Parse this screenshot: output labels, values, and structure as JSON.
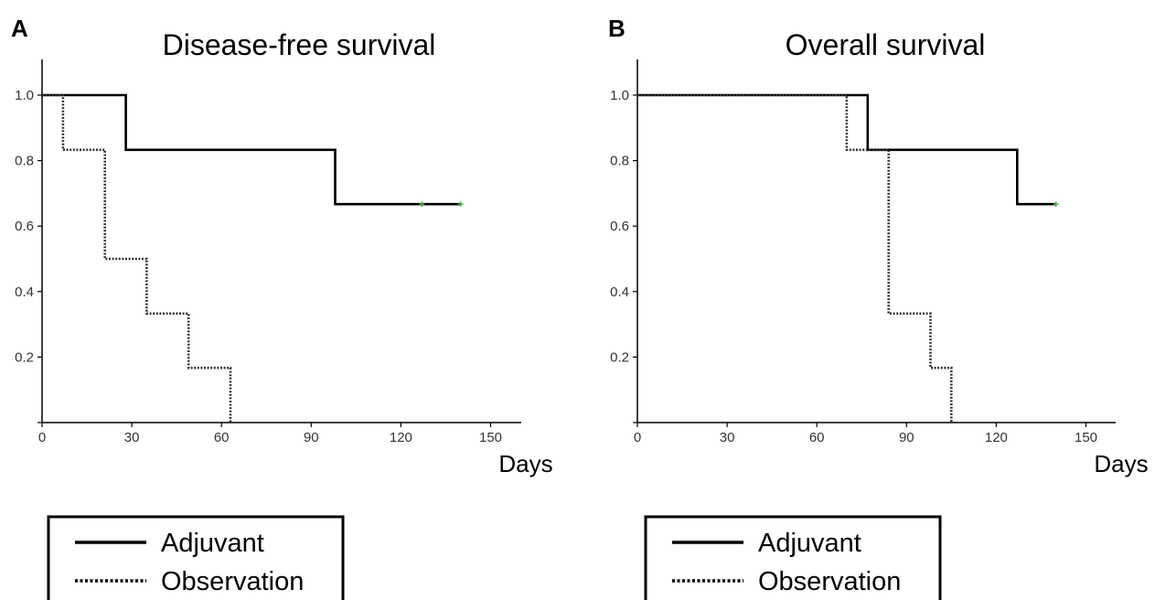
{
  "chart_data": [
    {
      "type": "line",
      "panel_label": "A",
      "title": "Disease-free survival",
      "xlabel": "Days",
      "ylabel": "",
      "xlim": [
        0,
        160
      ],
      "ylim": [
        0,
        1.1
      ],
      "x_ticks": [
        "0",
        "30",
        "60",
        "90",
        "120",
        "150"
      ],
      "y_ticks": [
        "0.2",
        "0.4",
        "0.6",
        "0.8",
        "1.0"
      ],
      "step": true,
      "series": [
        {
          "name": "Adjuvant",
          "style": "solid",
          "points": [
            [
              0,
              1.0
            ],
            [
              28,
              1.0
            ],
            [
              28,
              0.833
            ],
            [
              98,
              0.833
            ],
            [
              98,
              0.667
            ],
            [
              140,
              0.667
            ]
          ],
          "censored": [
            [
              127,
              0.667
            ],
            [
              140,
              0.667
            ]
          ]
        },
        {
          "name": "Observation",
          "style": "dotted",
          "points": [
            [
              0,
              1.0
            ],
            [
              7,
              1.0
            ],
            [
              7,
              0.833
            ],
            [
              21,
              0.833
            ],
            [
              21,
              0.5
            ],
            [
              35,
              0.5
            ],
            [
              35,
              0.333
            ],
            [
              49,
              0.333
            ],
            [
              49,
              0.167
            ],
            [
              63,
              0.167
            ],
            [
              63,
              0.0
            ]
          ],
          "censored": []
        }
      ],
      "censor_color": "#4caf50",
      "legend": [
        "Adjuvant",
        "Observation"
      ],
      "legend_position": "bottom"
    },
    {
      "type": "line",
      "panel_label": "B",
      "title": "Overall survival",
      "xlabel": "Days",
      "ylabel": "",
      "xlim": [
        0,
        160
      ],
      "ylim": [
        0,
        1.1
      ],
      "x_ticks": [
        "0",
        "30",
        "60",
        "90",
        "120",
        "150"
      ],
      "y_ticks": [
        "0.2",
        "0.4",
        "0.6",
        "0.8",
        "1.0"
      ],
      "step": true,
      "series": [
        {
          "name": "Adjuvant",
          "style": "solid",
          "points": [
            [
              0,
              1.0
            ],
            [
              77,
              1.0
            ],
            [
              77,
              0.833
            ],
            [
              127,
              0.833
            ],
            [
              127,
              0.667
            ],
            [
              140,
              0.667
            ]
          ],
          "censored": [
            [
              140,
              0.667
            ]
          ]
        },
        {
          "name": "Observation",
          "style": "dotted",
          "points": [
            [
              0,
              1.0
            ],
            [
              70,
              1.0
            ],
            [
              70,
              0.833
            ],
            [
              84,
              0.833
            ],
            [
              84,
              0.333
            ],
            [
              98,
              0.333
            ],
            [
              98,
              0.167
            ],
            [
              105,
              0.167
            ],
            [
              105,
              0.0
            ]
          ],
          "censored": []
        }
      ],
      "censor_color": "#4caf50",
      "legend": [
        "Adjuvant",
        "Observation"
      ],
      "legend_position": "bottom"
    }
  ]
}
